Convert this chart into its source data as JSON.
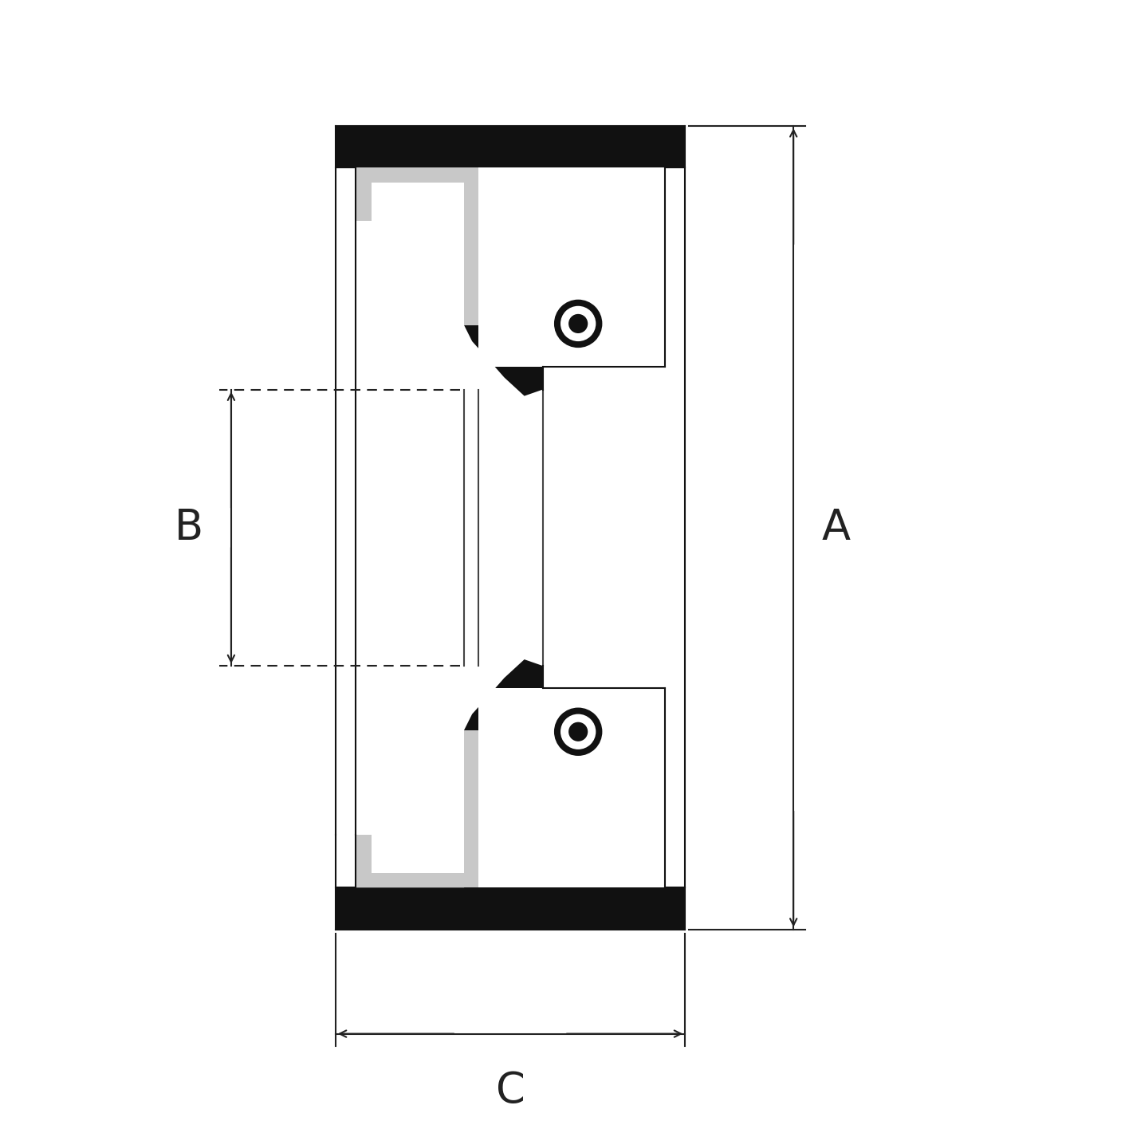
{
  "bg_color": "#ffffff",
  "fill_black": "#111111",
  "fill_gray": "#c8c8c8",
  "label_A": "A",
  "label_B": "B",
  "label_C": "C",
  "figsize": [
    14.06,
    14.06
  ],
  "dpi": 100,
  "xlim": [
    -5.5,
    6.5
  ],
  "ylim": [
    -2.0,
    11.5
  ],
  "dim_color": "#222222",
  "lw_dim": 1.5
}
